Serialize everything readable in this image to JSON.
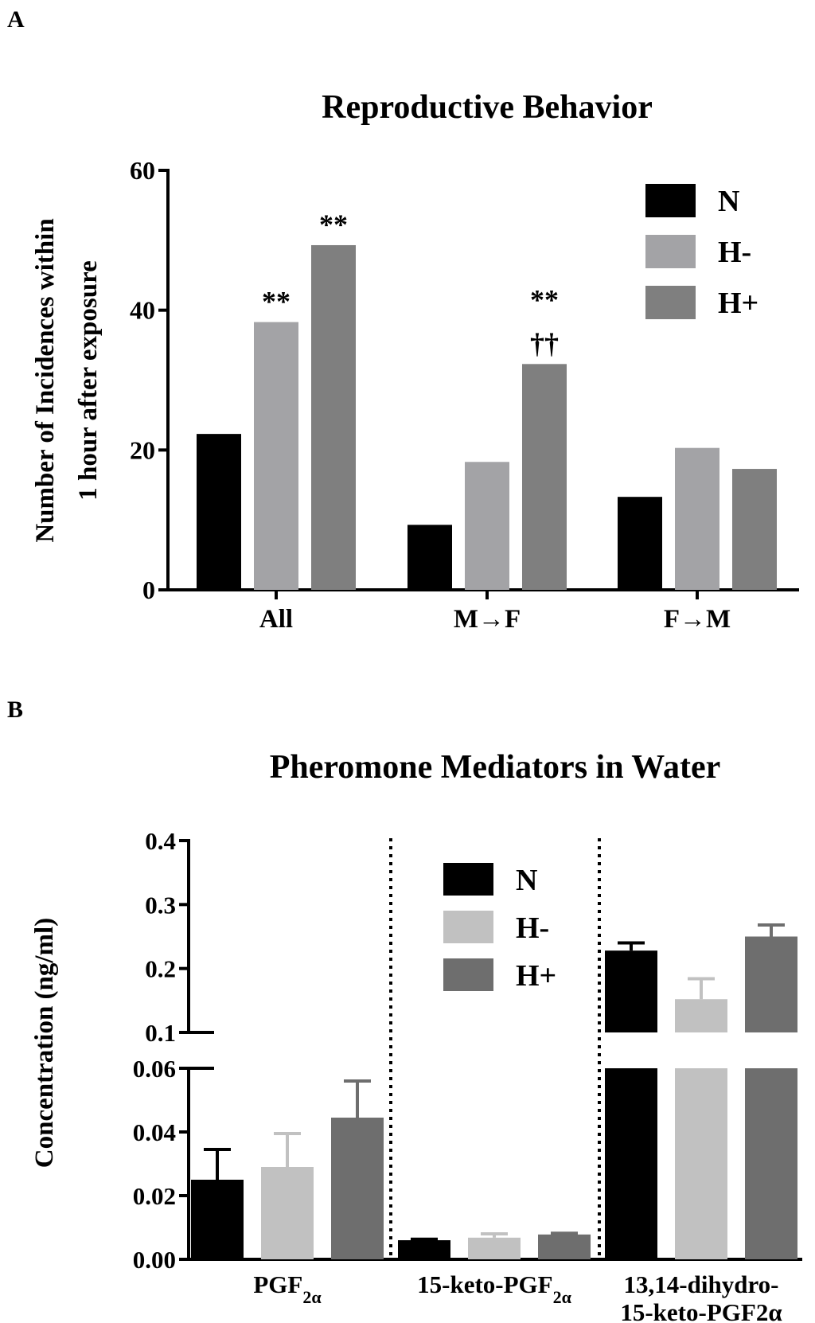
{
  "panel_a": {
    "label": "A",
    "chart_data": {
      "type": "bar",
      "title": "Reproductive Behavior",
      "ylabel": [
        "Number of Incidences within",
        "1 hour after exposure"
      ],
      "xlabel": "",
      "categories": [
        "All",
        "M→F",
        "F→M"
      ],
      "ylim": [
        0,
        60
      ],
      "yticks": [
        0,
        20,
        40,
        60
      ],
      "series": [
        {
          "name": "N",
          "color": "#000000",
          "values": [
            22.3,
            9.3,
            13.3
          ]
        },
        {
          "name": "H-",
          "color": "#a3a3a6",
          "values": [
            38.3,
            18.3,
            20.3
          ]
        },
        {
          "name": "H+",
          "color": "#7f7f7f",
          "values": [
            49.3,
            32.3,
            17.3
          ]
        }
      ],
      "annotations": [
        {
          "series": 1,
          "category": 0,
          "lines": [
            "**"
          ]
        },
        {
          "series": 2,
          "category": 0,
          "lines": [
            "**"
          ]
        },
        {
          "series": 2,
          "category": 1,
          "lines": [
            "**",
            "††"
          ]
        }
      ],
      "legend": "top-right"
    }
  },
  "panel_b": {
    "label": "B",
    "chart_data": {
      "type": "bar",
      "title": "Pheromone Mediators in Water",
      "ylabel": "Concentration (ng/ml)",
      "xlabel": "",
      "categories": [
        {
          "label": "PGF",
          "sub": "2α"
        },
        {
          "label": "15-keto-PGF",
          "sub": "2α"
        },
        {
          "label": "13,14-dihydro-",
          "line2": "15-keto-PGF2α"
        }
      ],
      "y_axis_break": true,
      "ylim_lower": [
        0,
        0.06
      ],
      "ylim_upper": [
        0.1,
        0.4
      ],
      "yticks_lower": [
        "0.00",
        "0.02",
        "0.04",
        "0.06"
      ],
      "yticks_upper": [
        "0.1",
        "0.2",
        "0.3",
        "0.4"
      ],
      "series": [
        {
          "name": "N",
          "color": "#000000",
          "values": [
            0.025,
            0.006,
            0.228
          ],
          "errors": [
            0.0095,
            0.0003,
            0.012
          ]
        },
        {
          "name": "H-",
          "color": "#c1c1c1",
          "values": [
            0.029,
            0.0068,
            0.152
          ],
          "errors": [
            0.0105,
            0.0012,
            0.032
          ]
        },
        {
          "name": "H+",
          "color": "#6e6e6e",
          "values": [
            0.0445,
            0.0078,
            0.25
          ],
          "errors": [
            0.0115,
            0.0004,
            0.018
          ]
        }
      ],
      "group_separators": "dotted vertical lines",
      "legend": "top-center"
    }
  }
}
